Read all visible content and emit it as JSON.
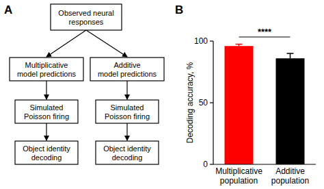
{
  "panel_labels": [
    "A",
    "B"
  ],
  "diagram": {
    "nodes": [
      {
        "lines": [
          "Observed neural",
          "responses"
        ]
      },
      {
        "lines": [
          "Multiplicative",
          "model predictions"
        ]
      },
      {
        "lines": [
          "Additive",
          "model predictions"
        ]
      },
      {
        "lines": [
          "Simulated",
          "Poisson firing"
        ]
      },
      {
        "lines": [
          "Simulated",
          "Poisson firing"
        ]
      },
      {
        "lines": [
          "Object identity",
          "decoding"
        ]
      },
      {
        "lines": [
          "Object identity",
          "decoding"
        ]
      }
    ],
    "edges": [
      [
        0,
        1
      ],
      [
        0,
        2
      ],
      [
        1,
        3
      ],
      [
        2,
        4
      ],
      [
        3,
        5
      ],
      [
        4,
        6
      ]
    ]
  },
  "chart_data": {
    "type": "bar",
    "y_label": "Decoding accuracy, %",
    "categories": [
      "Multiplicative population",
      "Additive population"
    ],
    "values": [
      96,
      86
    ],
    "errors": [
      1.5,
      4
    ],
    "colors": [
      "#ff0000",
      "#000000"
    ],
    "ylim": [
      0,
      100
    ],
    "yticks": [
      0,
      50,
      100
    ],
    "annotations": [
      "****"
    ]
  }
}
